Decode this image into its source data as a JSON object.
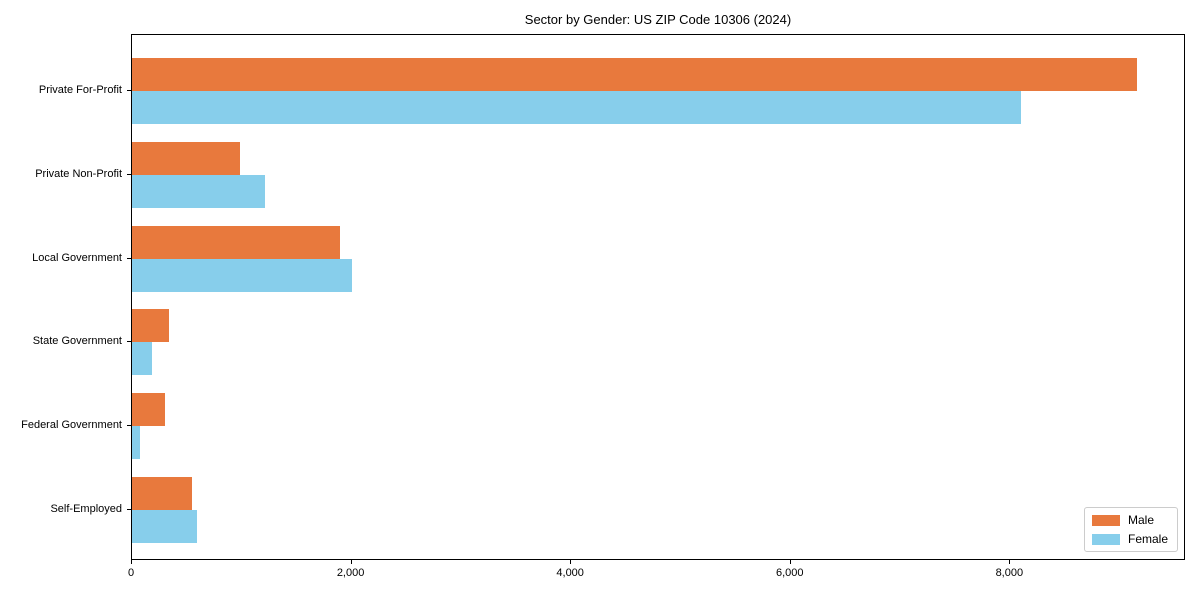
{
  "title": "Sector by Gender: US ZIP Code 10306 (2024)",
  "legend": {
    "position": "lower right",
    "items": [
      {
        "label": "Male",
        "color": "#e8793d"
      },
      {
        "label": "Female",
        "color": "#87ceeb"
      }
    ]
  },
  "chart_data": {
    "type": "bar",
    "orientation": "horizontal",
    "title": "Sector by Gender: US ZIP Code 10306 (2024)",
    "categories": [
      "Private For-Profit",
      "Private Non-Profit",
      "Local Government",
      "State Government",
      "Federal Government",
      "Self-Employed"
    ],
    "series": [
      {
        "name": "Male",
        "color": "#e8793d",
        "values": [
          9150,
          980,
          1890,
          340,
          300,
          550
        ]
      },
      {
        "name": "Female",
        "color": "#87ceeb",
        "values": [
          8100,
          1210,
          2000,
          180,
          75,
          590
        ]
      }
    ],
    "xlabel": "",
    "ylabel": "",
    "xlim": [
      0,
      9600
    ],
    "xticks": [
      0,
      2000,
      4000,
      6000,
      8000
    ],
    "xtick_labels": [
      "0",
      "2,000",
      "4,000",
      "6,000",
      "8,000"
    ],
    "grid": false,
    "legend_position": "lower right"
  }
}
